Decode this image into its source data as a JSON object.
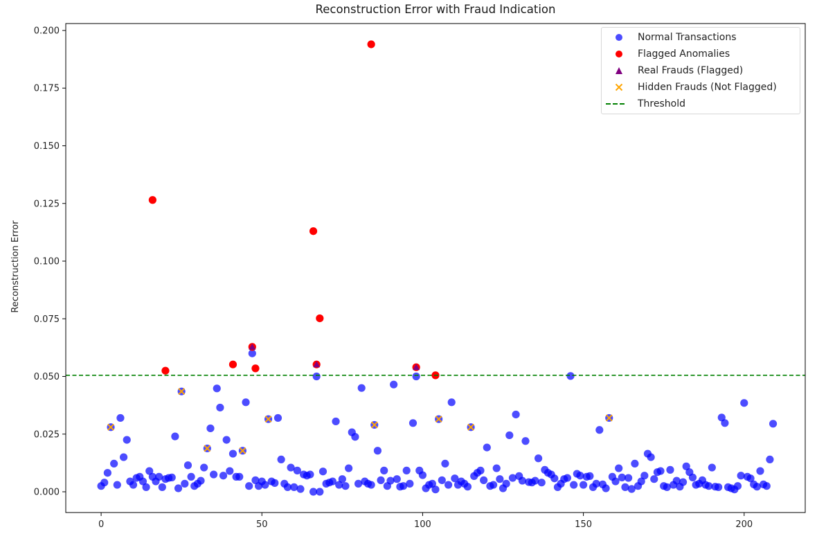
{
  "chart_data": {
    "type": "scatter",
    "title": "Reconstruction Error with Fraud Indication",
    "xlabel": "",
    "ylabel": "Reconstruction Error",
    "xlim": [
      -11,
      219
    ],
    "ylim": [
      -0.009,
      0.203
    ],
    "x_ticks": [
      0,
      50,
      100,
      150,
      200
    ],
    "x_tick_labels": [
      "0",
      "50",
      "100",
      "150",
      "200"
    ],
    "y_ticks": [
      0.0,
      0.025,
      0.05,
      0.075,
      0.1,
      0.125,
      0.15,
      0.175,
      0.2
    ],
    "y_tick_labels": [
      "0.000",
      "0.025",
      "0.050",
      "0.075",
      "0.100",
      "0.125",
      "0.150",
      "0.175",
      "0.200"
    ],
    "grid": false,
    "legend_position": "upper right",
    "threshold": 0.0505,
    "colors": {
      "normal": "#0000ff",
      "flagged": "#ff0000",
      "real_fraud": "#800080",
      "hidden_fraud": "#ffa500",
      "threshold": "#008000"
    },
    "series": [
      {
        "name": "Normal Transactions",
        "marker": "circle",
        "color": "#0000ff",
        "alpha": 0.7,
        "points": [
          [
            0,
            0.0025
          ],
          [
            1,
            0.004
          ],
          [
            2,
            0.0082
          ],
          [
            3,
            0.028
          ],
          [
            4,
            0.0122
          ],
          [
            5,
            0.003
          ],
          [
            6,
            0.032
          ],
          [
            7,
            0.015
          ],
          [
            8,
            0.0225
          ],
          [
            9,
            0.0045
          ],
          [
            10,
            0.003
          ],
          [
            11,
            0.006
          ],
          [
            12,
            0.0065
          ],
          [
            13,
            0.0045
          ],
          [
            14,
            0.002
          ],
          [
            15,
            0.009
          ],
          [
            16,
            0.0065
          ],
          [
            17,
            0.0045
          ],
          [
            18,
            0.0065
          ],
          [
            19,
            0.002
          ],
          [
            20,
            0.0055
          ],
          [
            21,
            0.006
          ],
          [
            22,
            0.0062
          ],
          [
            23,
            0.024
          ],
          [
            24,
            0.0015
          ],
          [
            25,
            0.0435
          ],
          [
            26,
            0.0035
          ],
          [
            27,
            0.0115
          ],
          [
            28,
            0.0065
          ],
          [
            29,
            0.0025
          ],
          [
            30,
            0.0035
          ],
          [
            31,
            0.0048
          ],
          [
            32,
            0.0105
          ],
          [
            33,
            0.0188
          ],
          [
            34,
            0.0275
          ],
          [
            35,
            0.0075
          ],
          [
            36,
            0.0448
          ],
          [
            37,
            0.0365
          ],
          [
            38,
            0.007
          ],
          [
            39,
            0.0225
          ],
          [
            40,
            0.009
          ],
          [
            41,
            0.0165
          ],
          [
            42,
            0.0065
          ],
          [
            43,
            0.0065
          ],
          [
            44,
            0.0178
          ],
          [
            45,
            0.0388
          ],
          [
            46,
            0.0025
          ],
          [
            47,
            0.06
          ],
          [
            48,
            0.005
          ],
          [
            49,
            0.0025
          ],
          [
            50,
            0.0045
          ],
          [
            51,
            0.003
          ],
          [
            52,
            0.0315
          ],
          [
            53,
            0.0045
          ],
          [
            54,
            0.0038
          ],
          [
            55,
            0.032
          ],
          [
            56,
            0.014
          ],
          [
            57,
            0.0035
          ],
          [
            58,
            0.002
          ],
          [
            59,
            0.0105
          ],
          [
            60,
            0.002
          ],
          [
            61,
            0.0092
          ],
          [
            62,
            0.0012
          ],
          [
            63,
            0.0075
          ],
          [
            64,
            0.007
          ],
          [
            65,
            0.0075
          ],
          [
            66,
            0.0
          ],
          [
            67,
            0.05
          ],
          [
            68,
            0.0
          ],
          [
            69,
            0.0088
          ],
          [
            70,
            0.0035
          ],
          [
            71,
            0.004
          ],
          [
            72,
            0.0045
          ],
          [
            73,
            0.0305
          ],
          [
            74,
            0.003
          ],
          [
            75,
            0.0055
          ],
          [
            76,
            0.0025
          ],
          [
            77,
            0.0102
          ],
          [
            78,
            0.0258
          ],
          [
            79,
            0.0238
          ],
          [
            80,
            0.0035
          ],
          [
            81,
            0.045
          ],
          [
            82,
            0.0045
          ],
          [
            83,
            0.0035
          ],
          [
            84,
            0.003
          ],
          [
            85,
            0.029
          ],
          [
            86,
            0.0178
          ],
          [
            87,
            0.005
          ],
          [
            88,
            0.0092
          ],
          [
            89,
            0.0025
          ],
          [
            90,
            0.0048
          ],
          [
            91,
            0.0465
          ],
          [
            92,
            0.0055
          ],
          [
            93,
            0.0022
          ],
          [
            94,
            0.0025
          ],
          [
            95,
            0.0092
          ],
          [
            96,
            0.0035
          ],
          [
            97,
            0.0298
          ],
          [
            98,
            0.05
          ],
          [
            99,
            0.0092
          ],
          [
            100,
            0.0072
          ],
          [
            101,
            0.0015
          ],
          [
            102,
            0.003
          ],
          [
            103,
            0.0035
          ],
          [
            104,
            0.001
          ],
          [
            105,
            0.0315
          ],
          [
            106,
            0.005
          ],
          [
            107,
            0.0122
          ],
          [
            108,
            0.003
          ],
          [
            109,
            0.0388
          ],
          [
            110,
            0.0058
          ],
          [
            111,
            0.003
          ],
          [
            112,
            0.0045
          ],
          [
            113,
            0.0035
          ],
          [
            114,
            0.0022
          ],
          [
            115,
            0.028
          ],
          [
            116,
            0.0068
          ],
          [
            117,
            0.0082
          ],
          [
            118,
            0.0092
          ],
          [
            119,
            0.005
          ],
          [
            120,
            0.0192
          ],
          [
            121,
            0.0025
          ],
          [
            122,
            0.003
          ],
          [
            123,
            0.0102
          ],
          [
            124,
            0.0055
          ],
          [
            125,
            0.0015
          ],
          [
            126,
            0.0035
          ],
          [
            127,
            0.0245
          ],
          [
            128,
            0.006
          ],
          [
            129,
            0.0335
          ],
          [
            130,
            0.0068
          ],
          [
            131,
            0.0048
          ],
          [
            132,
            0.022
          ],
          [
            133,
            0.0042
          ],
          [
            134,
            0.004
          ],
          [
            135,
            0.0048
          ],
          [
            136,
            0.0145
          ],
          [
            137,
            0.004
          ],
          [
            138,
            0.0095
          ],
          [
            139,
            0.0082
          ],
          [
            140,
            0.0075
          ],
          [
            141,
            0.0058
          ],
          [
            142,
            0.002
          ],
          [
            143,
            0.0035
          ],
          [
            144,
            0.0055
          ],
          [
            145,
            0.006
          ],
          [
            146,
            0.0502
          ],
          [
            147,
            0.003
          ],
          [
            148,
            0.0078
          ],
          [
            149,
            0.007
          ],
          [
            150,
            0.003
          ],
          [
            151,
            0.0065
          ],
          [
            152,
            0.0068
          ],
          [
            153,
            0.002
          ],
          [
            154,
            0.0035
          ],
          [
            155,
            0.0268
          ],
          [
            156,
            0.0032
          ],
          [
            157,
            0.0015
          ],
          [
            158,
            0.032
          ],
          [
            159,
            0.0065
          ],
          [
            160,
            0.0045
          ],
          [
            161,
            0.0102
          ],
          [
            162,
            0.0062
          ],
          [
            163,
            0.002
          ],
          [
            164,
            0.006
          ],
          [
            165,
            0.0012
          ],
          [
            166,
            0.0122
          ],
          [
            167,
            0.0025
          ],
          [
            168,
            0.0045
          ],
          [
            169,
            0.007
          ],
          [
            170,
            0.0165
          ],
          [
            171,
            0.015
          ],
          [
            172,
            0.0055
          ],
          [
            173,
            0.0085
          ],
          [
            174,
            0.009
          ],
          [
            175,
            0.0025
          ],
          [
            176,
            0.002
          ],
          [
            177,
            0.0095
          ],
          [
            178,
            0.003
          ],
          [
            179,
            0.0048
          ],
          [
            180,
            0.0022
          ],
          [
            181,
            0.0042
          ],
          [
            182,
            0.011
          ],
          [
            183,
            0.0085
          ],
          [
            184,
            0.0062
          ],
          [
            185,
            0.003
          ],
          [
            186,
            0.0035
          ],
          [
            187,
            0.005
          ],
          [
            188,
            0.003
          ],
          [
            189,
            0.0025
          ],
          [
            190,
            0.0105
          ],
          [
            191,
            0.0022
          ],
          [
            192,
            0.002
          ],
          [
            193,
            0.0322
          ],
          [
            194,
            0.0298
          ],
          [
            195,
            0.002
          ],
          [
            196,
            0.0015
          ],
          [
            197,
            0.001
          ],
          [
            198,
            0.0025
          ],
          [
            199,
            0.007
          ],
          [
            200,
            0.0385
          ],
          [
            201,
            0.0065
          ],
          [
            202,
            0.0058
          ],
          [
            203,
            0.0032
          ],
          [
            204,
            0.0022
          ],
          [
            205,
            0.009
          ],
          [
            206,
            0.0032
          ],
          [
            207,
            0.0025
          ],
          [
            208,
            0.014
          ],
          [
            209,
            0.0295
          ]
        ]
      },
      {
        "name": "Flagged Anomalies",
        "marker": "circle",
        "color": "#ff0000",
        "points": [
          [
            16,
            0.1265
          ],
          [
            20,
            0.0525
          ],
          [
            41,
            0.0552
          ],
          [
            47,
            0.0628
          ],
          [
            48,
            0.0535
          ],
          [
            66,
            0.113
          ],
          [
            67,
            0.0552
          ],
          [
            68,
            0.0752
          ],
          [
            84,
            0.194
          ],
          [
            98,
            0.054
          ],
          [
            104,
            0.0505
          ]
        ]
      },
      {
        "name": "Real Frauds (Flagged)",
        "marker": "triangle",
        "color": "#800080",
        "points": [
          [
            47,
            0.0628
          ],
          [
            67,
            0.0552
          ],
          [
            98,
            0.054
          ]
        ]
      },
      {
        "name": "Hidden Frauds (Not Flagged)",
        "marker": "x",
        "color": "#ffa500",
        "points": [
          [
            3,
            0.028
          ],
          [
            25,
            0.0435
          ],
          [
            33,
            0.0188
          ],
          [
            44,
            0.0178
          ],
          [
            52,
            0.0315
          ],
          [
            85,
            0.029
          ],
          [
            105,
            0.0315
          ],
          [
            115,
            0.028
          ],
          [
            158,
            0.032
          ]
        ]
      },
      {
        "name": "Threshold",
        "marker": "dashed-line",
        "color": "#008000",
        "value": 0.0505
      }
    ]
  },
  "legend": {
    "items": [
      {
        "label": "Normal Transactions",
        "marker": "circle",
        "color": "#0000ff"
      },
      {
        "label": "Flagged Anomalies",
        "marker": "circle",
        "color": "#ff0000"
      },
      {
        "label": "Real Frauds (Flagged)",
        "marker": "triangle",
        "color": "#800080"
      },
      {
        "label": "Hidden Frauds (Not Flagged)",
        "marker": "x",
        "color": "#ffa500"
      },
      {
        "label": "Threshold",
        "marker": "dashed-line",
        "color": "#008000"
      }
    ]
  }
}
